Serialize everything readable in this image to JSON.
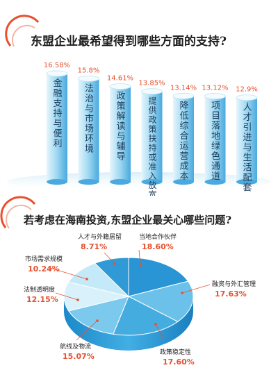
{
  "colors": {
    "accent": "#e8502e",
    "bar_light": "#e4f4fc",
    "bar_mid": "#a9dcf4",
    "bar_dark": "#5bb6e6",
    "pie_dark": "#1f93d3",
    "pie_light": "#cfeefb"
  },
  "chart_data": [
    {
      "type": "bar",
      "title": "东盟企业最希望得到哪些方面的支持?",
      "categories": [
        "金融支持与便利",
        "法治与市场环境",
        "政策解读与辅导",
        "提供政策扶持或准入放宽",
        "降低综合运营成本",
        "项目落地绿色通道",
        "人才引进与生活配套"
      ],
      "values": [
        16.58,
        15.8,
        14.61,
        13.85,
        13.14,
        13.12,
        12.9
      ],
      "value_labels": [
        "16.58%",
        "15.8%",
        "14.61%",
        "13.85%",
        "13.14%",
        "13.12%",
        "12.9%"
      ],
      "ylim": [
        0,
        17
      ]
    },
    {
      "type": "pie",
      "title": "若考虑在海南投资,东盟企业最关心哪些问题?",
      "labels": [
        "当地合作伙伴",
        "融资与外汇管理",
        "政策稳定性",
        "航线及物流",
        "法制透明度",
        "市场需求规模",
        "人才与外籍居留"
      ],
      "values": [
        18.6,
        17.63,
        17.6,
        15.07,
        12.15,
        10.24,
        8.71
      ],
      "value_labels": [
        "18.60%",
        "17.63%",
        "17.60%",
        "15.07%",
        "12.15%",
        "10.24%",
        "8.71%"
      ]
    }
  ]
}
